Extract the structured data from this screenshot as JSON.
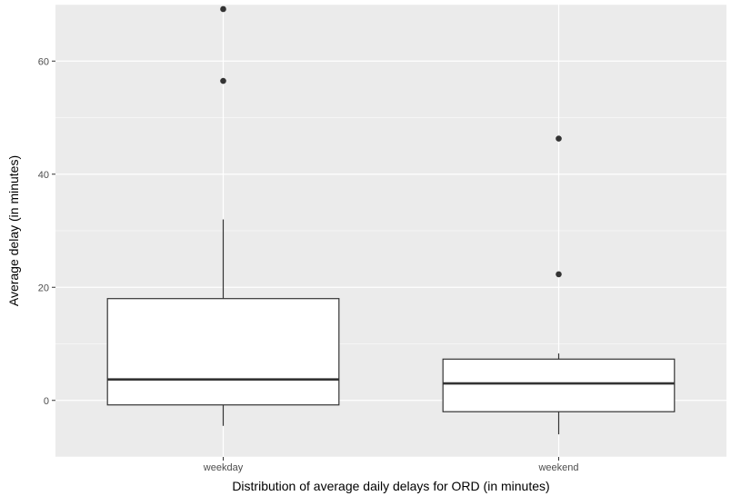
{
  "chart_data": {
    "type": "box",
    "title": "",
    "xlabel": "Distribution of average daily delays for ORD (in minutes)",
    "ylabel": "Average delay (in minutes)",
    "ylim": [
      -10,
      70
    ],
    "y_ticks": [
      0,
      20,
      40,
      60
    ],
    "grid": true,
    "categories": [
      "weekday",
      "weekend"
    ],
    "boxes": [
      {
        "category": "weekday",
        "whisker_low": -4.5,
        "q1": -0.8,
        "median": 3.7,
        "q3": 18.0,
        "whisker_high": 32.0,
        "outliers": [
          56.5,
          69.2
        ]
      },
      {
        "category": "weekend",
        "whisker_low": -6.0,
        "q1": -2.0,
        "median": 3.0,
        "q3": 7.3,
        "whisker_high": 8.3,
        "outliers": [
          22.3,
          46.3
        ]
      }
    ],
    "colors": {
      "panel": "#ebebeb",
      "grid": "#ffffff",
      "box_fill": "#ffffff",
      "box_line": "#333333",
      "point": "#333333"
    }
  }
}
